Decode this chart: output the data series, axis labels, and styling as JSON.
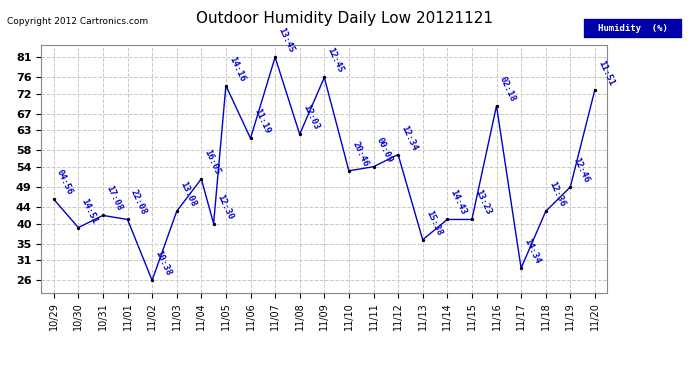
{
  "title": "Outdoor Humidity Daily Low 20121121",
  "copyright": "Copyright 2012 Cartronics.com",
  "legend_label": "Humidity  (%)",
  "x_tick_labels": [
    "10/29",
    "10/30",
    "10/31",
    "11/01",
    "11/02",
    "11/03",
    "11/04",
    "11/05",
    "11/06",
    "11/07",
    "11/08",
    "11/09",
    "11/10",
    "11/11",
    "11/12",
    "11/13",
    "11/14",
    "11/15",
    "11/16",
    "11/17",
    "11/18",
    "11/19",
    "11/20"
  ],
  "x_positions": [
    0,
    1,
    2,
    3,
    4,
    5,
    6,
    7,
    8,
    9,
    10,
    11,
    12,
    13,
    14,
    15,
    16,
    17,
    18,
    19,
    20,
    21,
    22
  ],
  "y_values": [
    46,
    39,
    42,
    41,
    26,
    43,
    51,
    40,
    74,
    61,
    81,
    62,
    76,
    53,
    54,
    57,
    36,
    41,
    41,
    69,
    29,
    43,
    49,
    73
  ],
  "point_labels": [
    "04:56",
    "14:51",
    "17:08",
    "22:08",
    "10:38",
    "13:08",
    "16:05",
    "12:30",
    "14:16",
    "11:19",
    "13:45",
    "12:03",
    "12:45",
    "20:46",
    "00:09",
    "12:34",
    "15:38",
    "14:43",
    "13:23",
    "02:18",
    "14:34",
    "12:36",
    "12:46",
    "11:51"
  ],
  "x_data_positions": [
    0,
    1,
    2,
    3,
    4,
    5,
    6,
    6.5,
    7,
    8,
    9,
    10,
    11,
    12,
    13,
    14,
    15,
    16,
    17,
    18,
    19,
    20,
    21,
    22
  ],
  "y_ticks": [
    26,
    31,
    35,
    40,
    44,
    49,
    54,
    58,
    63,
    67,
    72,
    76,
    81
  ],
  "ylim": [
    23,
    84
  ],
  "xlim": [
    -0.5,
    22.5
  ],
  "line_color": "#0000cc",
  "marker_color": "#000000",
  "background_color": "#ffffff",
  "grid_color": "#c8c8c8",
  "title_fontsize": 11,
  "tick_fontsize": 7,
  "label_fontsize": 6.5,
  "legend_bg": "#0000aa",
  "legend_fg": "#ffffff"
}
